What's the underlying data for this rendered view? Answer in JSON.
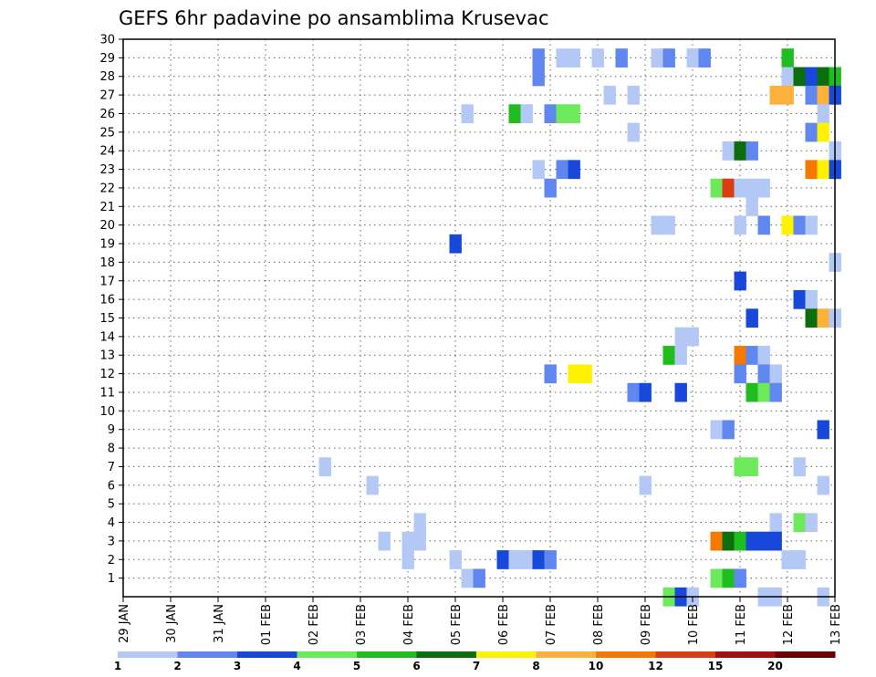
{
  "chart_data": {
    "type": "heatmap",
    "title": "GEFS 6hr padavine po ansamblima Krusevac",
    "xlabel": "",
    "ylabel": "",
    "x_ticks": [
      "29 JAN",
      "30 JAN",
      "31 JAN",
      "01 FEB",
      "02 FEB",
      "03 FEB",
      "04 FEB",
      "05 FEB",
      "06 FEB",
      "07 FEB",
      "08 FEB",
      "09 FEB",
      "10 FEB",
      "11 FEB",
      "12 FEB",
      "13 FEB"
    ],
    "y_ticks": [
      "1",
      "2",
      "3",
      "4",
      "5",
      "6",
      "7",
      "8",
      "9",
      "10",
      "11",
      "12",
      "13",
      "14",
      "15",
      "16",
      "17",
      "18",
      "19",
      "20",
      "21",
      "22",
      "23",
      "24",
      "25",
      "26",
      "27",
      "28",
      "29",
      "30"
    ],
    "x_range_days": [
      0,
      15
    ],
    "y_range": [
      0,
      30
    ],
    "grid": true,
    "legend_placement": "bottom",
    "legend": {
      "levels": [
        1,
        2,
        3,
        4,
        5,
        6,
        7,
        8,
        10,
        12,
        15,
        20
      ],
      "labels": [
        "1",
        "2",
        "3",
        "4",
        "5",
        "6",
        "7",
        "8",
        "10",
        "12",
        "15",
        "20"
      ],
      "colors": [
        "#b4c8f5",
        "#5f87ef",
        "#1748d9",
        "#6dea5c",
        "#1fbd1f",
        "#0b6d0b",
        "#fff200",
        "#fbb13a",
        "#f57800",
        "#dc3c14",
        "#a50f0f",
        "#6b0000"
      ]
    },
    "colors": [
      "#b4c8f5",
      "#5f87ef",
      "#1748d9",
      "#6dea5c",
      "#1fbd1f",
      "#0b6d0b",
      "#fff200",
      "#fbb13a",
      "#f57800",
      "#dc3c14",
      "#a50f0f",
      "#6b0000"
    ],
    "cells_note": "each cell: [member, day offset from 29 JAN (step 0.25 = 6 h), color level index]",
    "cells": [
      [
        29,
        8.75,
        1
      ],
      [
        29,
        9.25,
        0
      ],
      [
        29,
        9.5,
        0
      ],
      [
        29,
        10.0,
        0
      ],
      [
        29,
        10.5,
        1
      ],
      [
        29,
        11.25,
        0
      ],
      [
        29,
        11.5,
        1
      ],
      [
        29,
        12.0,
        0
      ],
      [
        29,
        12.25,
        1
      ],
      [
        29,
        14.0,
        4
      ],
      [
        28,
        8.75,
        1
      ],
      [
        28,
        14.0,
        0
      ],
      [
        28,
        14.25,
        5
      ],
      [
        28,
        14.5,
        2
      ],
      [
        28,
        14.75,
        5
      ],
      [
        28,
        15.0,
        4
      ],
      [
        27,
        10.25,
        0
      ],
      [
        27,
        10.75,
        0
      ],
      [
        27,
        13.75,
        7
      ],
      [
        27,
        14.0,
        7
      ],
      [
        27,
        14.5,
        1
      ],
      [
        27,
        14.75,
        7
      ],
      [
        27,
        15.0,
        2
      ],
      [
        26,
        7.25,
        0
      ],
      [
        26,
        8.25,
        4
      ],
      [
        26,
        8.5,
        0
      ],
      [
        26,
        9.0,
        1
      ],
      [
        26,
        9.25,
        3
      ],
      [
        26,
        9.5,
        3
      ],
      [
        26,
        14.75,
        0
      ],
      [
        25,
        10.75,
        0
      ],
      [
        25,
        14.5,
        1
      ],
      [
        25,
        14.75,
        6
      ],
      [
        24,
        12.75,
        0
      ],
      [
        24,
        13.0,
        5
      ],
      [
        24,
        13.25,
        1
      ],
      [
        24,
        15.0,
        0
      ],
      [
        23,
        8.75,
        0
      ],
      [
        23,
        9.25,
        1
      ],
      [
        23,
        9.5,
        2
      ],
      [
        23,
        14.5,
        8
      ],
      [
        23,
        14.75,
        6
      ],
      [
        23,
        15.0,
        2
      ],
      [
        22,
        9.0,
        1
      ],
      [
        22,
        12.5,
        3
      ],
      [
        22,
        12.75,
        9
      ],
      [
        22,
        13.0,
        0
      ],
      [
        22,
        13.25,
        0
      ],
      [
        22,
        13.5,
        0
      ],
      [
        21,
        13.25,
        0
      ],
      [
        20,
        11.25,
        0
      ],
      [
        20,
        11.5,
        0
      ],
      [
        20,
        13.0,
        0
      ],
      [
        20,
        13.5,
        1
      ],
      [
        20,
        14.0,
        6
      ],
      [
        20,
        14.25,
        1
      ],
      [
        20,
        14.5,
        0
      ],
      [
        19,
        7.0,
        2
      ],
      [
        18,
        15.0,
        0
      ],
      [
        17,
        13.0,
        2
      ],
      [
        16,
        14.25,
        2
      ],
      [
        16,
        14.5,
        0
      ],
      [
        15,
        13.25,
        2
      ],
      [
        15,
        14.5,
        5
      ],
      [
        15,
        14.75,
        7
      ],
      [
        15,
        15.0,
        0
      ],
      [
        14,
        11.75,
        0
      ],
      [
        14,
        12.0,
        0
      ],
      [
        13,
        11.5,
        4
      ],
      [
        13,
        11.75,
        0
      ],
      [
        13,
        13.0,
        8
      ],
      [
        13,
        13.25,
        1
      ],
      [
        13,
        13.5,
        0
      ],
      [
        12,
        9.0,
        1
      ],
      [
        12,
        9.5,
        6
      ],
      [
        12,
        9.75,
        6
      ],
      [
        12,
        13.0,
        1
      ],
      [
        12,
        13.5,
        1
      ],
      [
        12,
        13.75,
        0
      ],
      [
        11,
        10.75,
        1
      ],
      [
        11,
        11.0,
        2
      ],
      [
        11,
        11.75,
        2
      ],
      [
        11,
        13.25,
        4
      ],
      [
        11,
        13.5,
        3
      ],
      [
        11,
        13.75,
        1
      ],
      [
        9,
        12.5,
        0
      ],
      [
        9,
        12.75,
        1
      ],
      [
        9,
        14.75,
        2
      ],
      [
        7,
        4.25,
        0
      ],
      [
        7,
        13.0,
        3
      ],
      [
        7,
        13.25,
        3
      ],
      [
        7,
        14.25,
        0
      ],
      [
        6,
        5.25,
        0
      ],
      [
        6,
        11.0,
        0
      ],
      [
        6,
        14.75,
        0
      ],
      [
        4,
        6.25,
        0
      ],
      [
        4,
        13.75,
        0
      ],
      [
        4,
        14.25,
        3
      ],
      [
        4,
        14.5,
        0
      ],
      [
        3,
        5.5,
        0
      ],
      [
        3,
        6.0,
        0
      ],
      [
        3,
        6.25,
        0
      ],
      [
        3,
        12.5,
        8
      ],
      [
        3,
        12.75,
        5
      ],
      [
        3,
        13.0,
        4
      ],
      [
        3,
        13.25,
        2
      ],
      [
        3,
        13.5,
        2
      ],
      [
        3,
        13.75,
        2
      ],
      [
        2,
        6.0,
        0
      ],
      [
        2,
        7.0,
        0
      ],
      [
        2,
        8.0,
        2
      ],
      [
        2,
        8.25,
        0
      ],
      [
        2,
        8.5,
        0
      ],
      [
        2,
        8.75,
        2
      ],
      [
        2,
        9.0,
        1
      ],
      [
        2,
        14.0,
        0
      ],
      [
        2,
        14.25,
        0
      ],
      [
        1,
        7.25,
        0
      ],
      [
        1,
        7.5,
        1
      ],
      [
        1,
        12.5,
        3
      ],
      [
        1,
        12.75,
        4
      ],
      [
        1,
        13.0,
        1
      ],
      [
        0,
        11.5,
        3
      ],
      [
        0,
        11.75,
        2
      ],
      [
        0,
        12.0,
        0
      ],
      [
        0,
        13.5,
        0
      ],
      [
        0,
        13.75,
        0
      ],
      [
        0,
        14.75,
        0
      ]
    ]
  }
}
